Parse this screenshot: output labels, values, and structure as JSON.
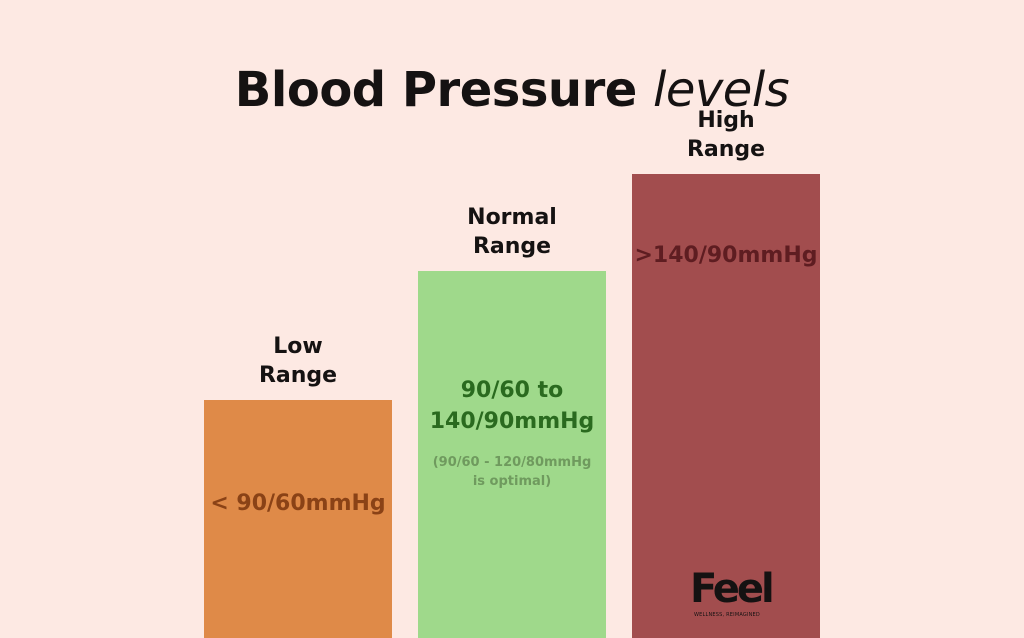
{
  "colors": {
    "background": "#fde9e3",
    "text": "#151212",
    "low_bar": "#df8a48",
    "low_text": "#8a4216",
    "normal_bar": "#9fd98b",
    "normal_text": "#2a6a1f",
    "normal_note": "#6f9a5e",
    "high_bar": "#a24d4e",
    "high_text": "#5e1d21"
  },
  "header": {
    "title_main": "Blood Pressure",
    "title_em": "levels"
  },
  "chart_data": {
    "type": "bar",
    "title": "Blood Pressure levels",
    "xlabel": "",
    "ylabel": "",
    "grid": false,
    "legend": "none",
    "ylim": [
      0,
      1
    ],
    "categories": [
      "Low Range",
      "Normal Range",
      "High Range"
    ],
    "values": [
      0.44,
      0.68,
      0.86
    ],
    "bars": [
      {
        "label_line1": "Low",
        "label_line2": "Range",
        "value_text": "< 90/60mmHg",
        "value_line2": "",
        "note_line1": "",
        "note_line2": ""
      },
      {
        "label_line1": "Normal",
        "label_line2": "Range",
        "value_text": "90/60 to",
        "value_line2": "140/90mmHg",
        "note_line1": "(90/60 - 120/80mmHg",
        "note_line2": "is optimal)"
      },
      {
        "label_line1": "High",
        "label_line2": "Range",
        "value_text": ">140/90mmHg",
        "value_line2": "",
        "note_line1": "",
        "note_line2": ""
      }
    ]
  },
  "logo": {
    "word": "Feel",
    "registered": "®",
    "tagline": "WELLNESS, REIMAGINED"
  }
}
